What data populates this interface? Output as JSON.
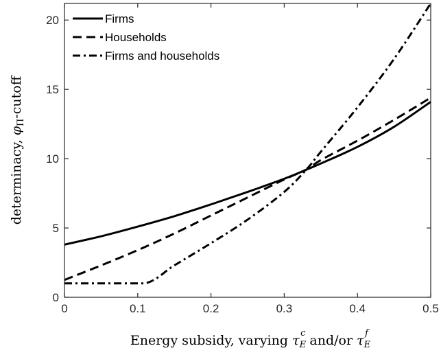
{
  "chart_data": {
    "type": "line",
    "xlabel": "Energy subsidy, varying τ_E^c and/or τ_E^f",
    "ylabel": "determinacy, φ_Π-cutoff",
    "xlim": [
      0,
      0.5
    ],
    "ylim": [
      0,
      21.2
    ],
    "xticks": [
      "0",
      "0.1",
      "0.2",
      "0.3",
      "0.4",
      "0.5"
    ],
    "yticks": [
      "0",
      "5",
      "10",
      "15",
      "20"
    ],
    "grid": false,
    "legend_position": "top-left",
    "series": [
      {
        "name": "Firms",
        "style": "solid",
        "x": [
          0,
          0.05,
          0.1,
          0.15,
          0.2,
          0.25,
          0.3,
          0.33,
          0.35,
          0.4,
          0.45,
          0.5
        ],
        "y": [
          3.8,
          4.4,
          5.1,
          5.85,
          6.7,
          7.6,
          8.55,
          9.2,
          9.65,
          10.85,
          12.3,
          14.1
        ]
      },
      {
        "name": "Households",
        "style": "dashed",
        "x": [
          0,
          0.05,
          0.1,
          0.15,
          0.2,
          0.25,
          0.3,
          0.33,
          0.35,
          0.4,
          0.45,
          0.5
        ],
        "y": [
          1.25,
          2.3,
          3.4,
          4.6,
          5.9,
          7.2,
          8.5,
          9.2,
          9.9,
          11.3,
          12.8,
          14.4
        ]
      },
      {
        "name": "Firms and households",
        "style": "dashdot",
        "x": [
          0,
          0.05,
          0.11,
          0.15,
          0.2,
          0.25,
          0.3,
          0.33,
          0.35,
          0.4,
          0.45,
          0.5
        ],
        "y": [
          1.0,
          1.0,
          1.0,
          2.3,
          3.9,
          5.6,
          7.6,
          9.2,
          10.5,
          13.7,
          17.2,
          21.2
        ]
      }
    ]
  }
}
